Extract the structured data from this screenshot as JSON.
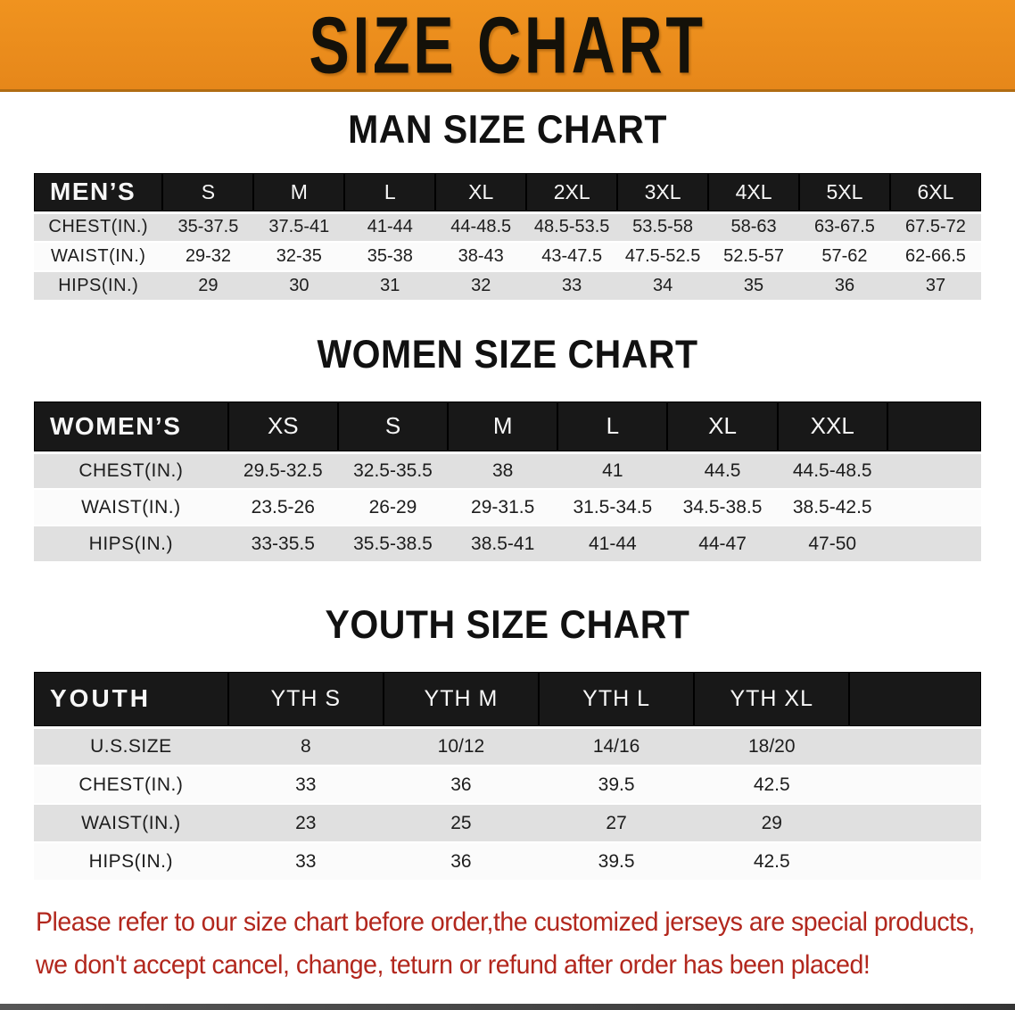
{
  "banner": {
    "title": "SIZE CHART"
  },
  "sections": [
    {
      "title": "MAN SIZE CHART",
      "table": {
        "label": "MEN’S",
        "sizes": [
          "S",
          "M",
          "L",
          "XL",
          "2XL",
          "3XL",
          "4XL",
          "5XL",
          "6XL"
        ],
        "rows": [
          {
            "label": "CHEST(IN.)",
            "values": [
              "35-37.5",
              "37.5-41",
              "41-44",
              "44-48.5",
              "48.5-53.5",
              "53.5-58",
              "58-63",
              "63-67.5",
              "67.5-72"
            ]
          },
          {
            "label": "WAIST(IN.)",
            "values": [
              "29-32",
              "32-35",
              "35-38",
              "38-43",
              "43-47.5",
              "47.5-52.5",
              "52.5-57",
              "57-62",
              "62-66.5"
            ]
          },
          {
            "label": "HIPS(IN.)",
            "values": [
              "29",
              "30",
              "31",
              "32",
              "33",
              "34",
              "35",
              "36",
              "37"
            ]
          }
        ]
      }
    },
    {
      "title": "WOMEN SIZE CHART",
      "table": {
        "label": "WOMEN’S",
        "sizes": [
          "XS",
          "S",
          "M",
          "L",
          "XL",
          "XXL"
        ],
        "rows": [
          {
            "label": "CHEST(IN.)",
            "values": [
              "29.5-32.5",
              "32.5-35.5",
              "38",
              "41",
              "44.5",
              "44.5-48.5"
            ]
          },
          {
            "label": "WAIST(IN.)",
            "values": [
              "23.5-26",
              "26-29",
              "29-31.5",
              "31.5-34.5",
              "34.5-38.5",
              "38.5-42.5"
            ]
          },
          {
            "label": "HIPS(IN.)",
            "values": [
              "33-35.5",
              "35.5-38.5",
              "38.5-41",
              "41-44",
              "44-47",
              "47-50"
            ]
          }
        ]
      }
    },
    {
      "title": "YOUTH SIZE CHART",
      "table": {
        "label": "YOUTH",
        "sizes": [
          "YTH S",
          "YTH M",
          "YTH L",
          "YTH XL"
        ],
        "rows": [
          {
            "label": "U.S.SIZE",
            "values": [
              "8",
              "10/12",
              "14/16",
              "18/20"
            ]
          },
          {
            "label": "CHEST(IN.)",
            "values": [
              "33",
              "36",
              "39.5",
              "42.5"
            ]
          },
          {
            "label": "WAIST(IN.)",
            "values": [
              "23",
              "25",
              "27",
              "29"
            ]
          },
          {
            "label": "HIPS(IN.)",
            "values": [
              "33",
              "36",
              "39.5",
              "42.5"
            ]
          }
        ]
      }
    }
  ],
  "disclaimer": {
    "lines": [
      "Please refer to our size chart before order,the customized jerseys are special products,",
      "we don't accept cancel, change, teturn or refund after order has been placed!"
    ]
  },
  "colors": {
    "banner_orange": "#ED8C1E",
    "table_header_black": "#181818",
    "row_stripe_gray": "#E0E0E0",
    "disclaimer_red": "#B2271D"
  }
}
